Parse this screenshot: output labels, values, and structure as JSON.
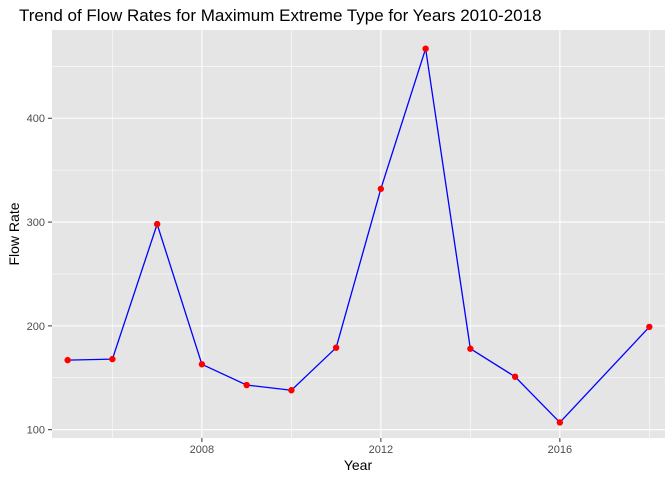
{
  "chart_data": {
    "type": "line",
    "title": "Trend of Flow Rates for Maximum Extreme Type for Years 2010-2018",
    "xlabel": "Year",
    "ylabel": "Flow Rate",
    "x_ticks": [
      2008,
      2012,
      2016
    ],
    "y_ticks": [
      100,
      200,
      300,
      400
    ],
    "xlim": [
      2004.65,
      2018.35
    ],
    "ylim": [
      92,
      485
    ],
    "grid": true,
    "legend": "none",
    "series": [
      {
        "x": [
          2005,
          2006,
          2007,
          2008,
          2009,
          2010,
          2011,
          2012,
          2013,
          2014,
          2015,
          2016,
          2018
        ],
        "y": [
          167,
          168,
          298,
          163,
          143,
          138,
          179,
          332,
          467,
          178,
          151,
          107,
          199
        ],
        "line_color": "#0000ff",
        "point_color": "#ff0000"
      }
    ],
    "panel_background": "#e5e5e5",
    "grid_color": "#ffffff"
  }
}
